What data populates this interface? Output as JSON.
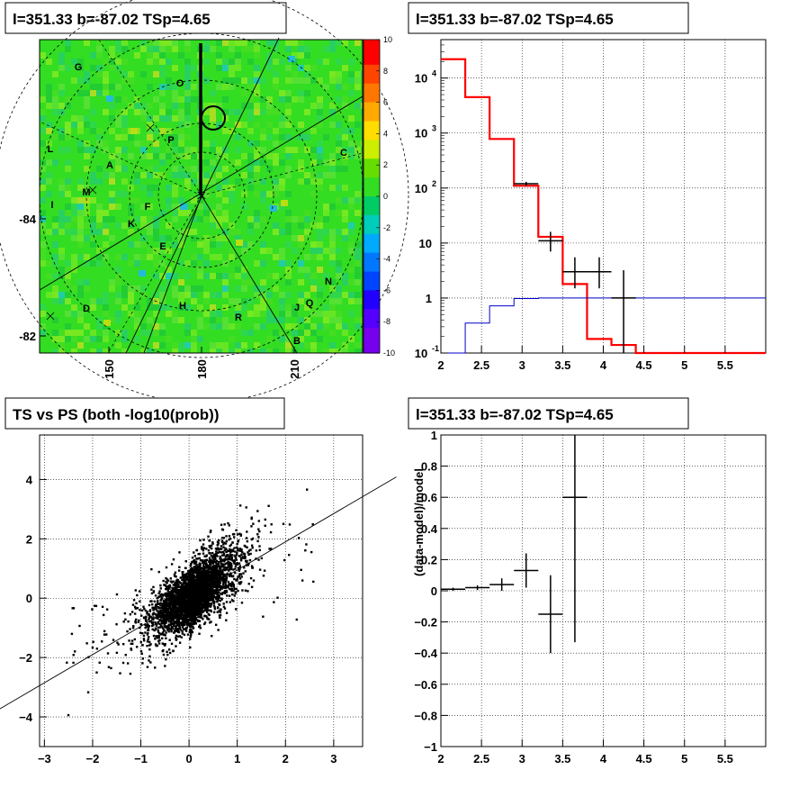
{
  "titles": {
    "skymap": "l=351.33 b=-87.02 TSp=4.65",
    "spectrum": "l=351.33 b=-87.02 TSp=4.65",
    "scatter": "TS vs PS (both -log10(prob))",
    "residual": "l=351.33 b=-87.02 TSp=4.65"
  },
  "chart_data": [
    {
      "type": "heatmap",
      "name": "skymap",
      "x_ticks": [
        "150",
        "180",
        "210"
      ],
      "y_ticks": [
        "-84",
        "-82"
      ],
      "colorbar": {
        "min": -10,
        "max": 10,
        "ticks": [
          "10",
          "8",
          "6",
          "4",
          "2",
          "0",
          "-2",
          "-4",
          "-6",
          "-8",
          "-10"
        ]
      },
      "region_labels": [
        "G",
        "O",
        "P",
        "L",
        "A",
        "C",
        "I",
        "M",
        "F",
        "K",
        "E",
        "N",
        "D",
        "H",
        "J",
        "Q",
        "R",
        "B"
      ],
      "colors": {
        "background": "#33dd22",
        "grid": "#000000"
      }
    },
    {
      "type": "line",
      "name": "spectrum",
      "log_y": true,
      "xlim": [
        2,
        6
      ],
      "ylim": [
        0.1,
        50000
      ],
      "x_ticks": [
        "2",
        "2.5",
        "3",
        "3.5",
        "4",
        "4.5",
        "5",
        "5.5"
      ],
      "y_ticks": [
        "10^4",
        "10^3",
        "10^2",
        "10",
        "1",
        "10^-1"
      ],
      "series": [
        {
          "color": "#ff0000",
          "step_edges": [
            2.0,
            2.3,
            2.6,
            2.9,
            3.2,
            3.5,
            3.8,
            4.1,
            4.4,
            6.0
          ],
          "values": [
            22000,
            4500,
            780,
            110,
            13,
            1.8,
            0.18,
            0.14,
            0.1
          ]
        },
        {
          "color": "#0000cc",
          "step_edges": [
            2.0,
            2.3,
            2.6,
            2.9,
            3.2,
            3.5,
            3.8,
            4.1,
            4.4,
            6.0
          ],
          "values": [
            0.1,
            0.35,
            0.72,
            0.98,
            1.0,
            1.0,
            1.0,
            1.0,
            1.0
          ]
        }
      ],
      "data_points": [
        {
          "x": 3.05,
          "xerr": 0.15,
          "y": 120,
          "ylo": 110,
          "yhi": 130
        },
        {
          "x": 3.35,
          "xerr": 0.15,
          "y": 11,
          "ylo": 7,
          "yhi": 16
        },
        {
          "x": 3.65,
          "xerr": 0.15,
          "y": 3,
          "ylo": 1.5,
          "yhi": 5.5
        },
        {
          "x": 3.95,
          "xerr": 0.15,
          "y": 3,
          "ylo": 1.5,
          "yhi": 5.5
        },
        {
          "x": 4.25,
          "xerr": 0.15,
          "y": 1,
          "ylo": 0.1,
          "yhi": 3.2
        }
      ]
    },
    {
      "type": "scatter",
      "name": "ts-vs-ps",
      "xlim": [
        -3.1,
        3.6
      ],
      "ylim": [
        -5,
        5.5
      ],
      "x_ticks": [
        "-3",
        "-2",
        "-1",
        "0",
        "1",
        "2",
        "3"
      ],
      "y_ticks": [
        "4",
        "2",
        "0",
        "-2",
        "-4"
      ],
      "fit_line": {
        "slope": 0.95,
        "intercept": 0
      }
    },
    {
      "type": "scatter",
      "name": "residual",
      "ylabel": "(data-model)/model",
      "xlim": [
        2,
        6
      ],
      "ylim": [
        -1,
        1
      ],
      "x_ticks": [
        "2",
        "2.5",
        "3",
        "3.5",
        "4",
        "4.5",
        "5",
        "5.5"
      ],
      "y_ticks": [
        "1",
        "0.8",
        "0.6",
        "0.4",
        "0.2",
        "0",
        "-0.2",
        "-0.4",
        "-0.6",
        "-0.8",
        "-1"
      ],
      "points": [
        {
          "x": 2.15,
          "xerr": 0.15,
          "y": 0.01,
          "yerr": 0.01
        },
        {
          "x": 2.45,
          "xerr": 0.15,
          "y": 0.02,
          "yerr": 0.015
        },
        {
          "x": 2.75,
          "xerr": 0.15,
          "y": 0.04,
          "yerr": 0.04
        },
        {
          "x": 3.05,
          "xerr": 0.15,
          "y": 0.13,
          "yerr": 0.11
        },
        {
          "x": 3.35,
          "xerr": 0.15,
          "y": -0.15,
          "yerr": 0.25
        },
        {
          "x": 3.65,
          "xerr": 0.15,
          "y": 0.6,
          "yerr": 0.93
        }
      ]
    }
  ]
}
